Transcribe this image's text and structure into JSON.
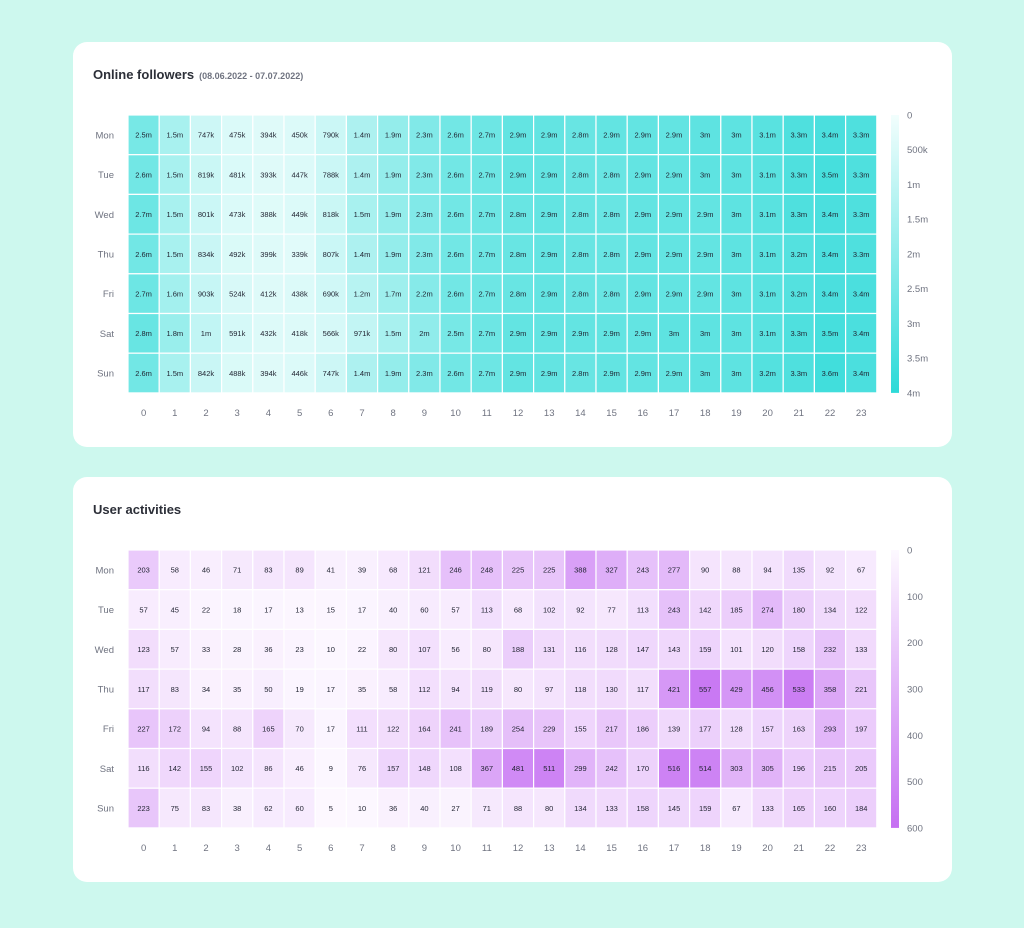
{
  "chart_data": [
    {
      "type": "heatmap",
      "title": "Online followers",
      "subtitle": "(08.06.2022 - 07.07.2022)",
      "rows": [
        "Mon",
        "Tue",
        "Wed",
        "Thu",
        "Fri",
        "Sat",
        "Sun"
      ],
      "columns": [
        "0",
        "1",
        "2",
        "3",
        "4",
        "5",
        "6",
        "7",
        "8",
        "9",
        "10",
        "11",
        "12",
        "13",
        "14",
        "15",
        "16",
        "17",
        "18",
        "19",
        "20",
        "21",
        "22",
        "23"
      ],
      "cell_labels": [
        [
          "2.5m",
          "1.5m",
          "747k",
          "475k",
          "394k",
          "450k",
          "790k",
          "1.4m",
          "1.9m",
          "2.3m",
          "2.6m",
          "2.7m",
          "2.9m",
          "2.9m",
          "2.8m",
          "2.9m",
          "2.9m",
          "2.9m",
          "3m",
          "3m",
          "3.1m",
          "3.3m",
          "3.4m",
          "3.3m"
        ],
        [
          "2.6m",
          "1.5m",
          "819k",
          "481k",
          "393k",
          "447k",
          "788k",
          "1.4m",
          "1.9m",
          "2.3m",
          "2.6m",
          "2.7m",
          "2.9m",
          "2.9m",
          "2.8m",
          "2.8m",
          "2.9m",
          "2.9m",
          "3m",
          "3m",
          "3.1m",
          "3.3m",
          "3.5m",
          "3.3m"
        ],
        [
          "2.7m",
          "1.5m",
          "801k",
          "473k",
          "388k",
          "449k",
          "818k",
          "1.5m",
          "1.9m",
          "2.3m",
          "2.6m",
          "2.7m",
          "2.8m",
          "2.9m",
          "2.8m",
          "2.8m",
          "2.9m",
          "2.9m",
          "2.9m",
          "3m",
          "3.1m",
          "3.3m",
          "3.4m",
          "3.3m"
        ],
        [
          "2.6m",
          "1.5m",
          "834k",
          "492k",
          "399k",
          "339k",
          "807k",
          "1.4m",
          "1.9m",
          "2.3m",
          "2.6m",
          "2.7m",
          "2.8m",
          "2.9m",
          "2.8m",
          "2.8m",
          "2.9m",
          "2.9m",
          "2.9m",
          "3m",
          "3.1m",
          "3.2m",
          "3.4m",
          "3.3m"
        ],
        [
          "2.7m",
          "1.6m",
          "903k",
          "524k",
          "412k",
          "438k",
          "690k",
          "1.2m",
          "1.7m",
          "2.2m",
          "2.6m",
          "2.7m",
          "2.8m",
          "2.9m",
          "2.8m",
          "2.8m",
          "2.9m",
          "2.9m",
          "2.9m",
          "3m",
          "3.1m",
          "3.2m",
          "3.4m",
          "3.4m"
        ],
        [
          "2.8m",
          "1.8m",
          "1m",
          "591k",
          "432k",
          "418k",
          "566k",
          "971k",
          "1.5m",
          "2m",
          "2.5m",
          "2.7m",
          "2.9m",
          "2.9m",
          "2.9m",
          "2.9m",
          "2.9m",
          "3m",
          "3m",
          "3m",
          "3.1m",
          "3.3m",
          "3.5m",
          "3.4m"
        ],
        [
          "2.6m",
          "1.5m",
          "842k",
          "488k",
          "394k",
          "446k",
          "747k",
          "1.4m",
          "1.9m",
          "2.3m",
          "2.6m",
          "2.7m",
          "2.9m",
          "2.9m",
          "2.8m",
          "2.9m",
          "2.9m",
          "2.9m",
          "3m",
          "3m",
          "3.2m",
          "3.3m",
          "3.6m",
          "3.4m"
        ]
      ],
      "values": [
        [
          2500000,
          1500000,
          747000,
          475000,
          394000,
          450000,
          790000,
          1400000,
          1900000,
          2300000,
          2600000,
          2700000,
          2900000,
          2900000,
          2800000,
          2900000,
          2900000,
          2900000,
          3000000,
          3000000,
          3100000,
          3300000,
          3400000,
          3300000
        ],
        [
          2600000,
          1500000,
          819000,
          481000,
          393000,
          447000,
          788000,
          1400000,
          1900000,
          2300000,
          2600000,
          2700000,
          2900000,
          2900000,
          2800000,
          2800000,
          2900000,
          2900000,
          3000000,
          3000000,
          3100000,
          3300000,
          3500000,
          3300000
        ],
        [
          2700000,
          1500000,
          801000,
          473000,
          388000,
          449000,
          818000,
          1500000,
          1900000,
          2300000,
          2600000,
          2700000,
          2800000,
          2900000,
          2800000,
          2800000,
          2900000,
          2900000,
          2900000,
          3000000,
          3100000,
          3300000,
          3400000,
          3300000
        ],
        [
          2600000,
          1500000,
          834000,
          492000,
          399000,
          339000,
          807000,
          1400000,
          1900000,
          2300000,
          2600000,
          2700000,
          2800000,
          2900000,
          2800000,
          2800000,
          2900000,
          2900000,
          2900000,
          3000000,
          3100000,
          3200000,
          3400000,
          3300000
        ],
        [
          2700000,
          1600000,
          903000,
          524000,
          412000,
          438000,
          690000,
          1200000,
          1700000,
          2200000,
          2600000,
          2700000,
          2800000,
          2900000,
          2800000,
          2800000,
          2900000,
          2900000,
          2900000,
          3000000,
          3100000,
          3200000,
          3400000,
          3400000
        ],
        [
          2800000,
          1800000,
          1000000,
          591000,
          432000,
          418000,
          566000,
          971000,
          1500000,
          2000000,
          2500000,
          2700000,
          2900000,
          2900000,
          2900000,
          2900000,
          2900000,
          3000000,
          3000000,
          3000000,
          3100000,
          3300000,
          3500000,
          3400000
        ],
        [
          2600000,
          1500000,
          842000,
          488000,
          394000,
          446000,
          747000,
          1400000,
          1900000,
          2300000,
          2600000,
          2700000,
          2900000,
          2900000,
          2800000,
          2900000,
          2900000,
          2900000,
          3000000,
          3000000,
          3200000,
          3300000,
          3600000,
          3400000
        ]
      ],
      "scale": {
        "min": 0,
        "max": 4000000,
        "ticks": [
          "0",
          "500k",
          "1m",
          "1.5m",
          "2m",
          "2.5m",
          "3m",
          "3.5m",
          "4m"
        ],
        "color_low": "#f2fefd",
        "color_high": "#2ddad8"
      },
      "legend_placement": "right"
    },
    {
      "type": "heatmap",
      "title": "User activities",
      "rows": [
        "Mon",
        "Tue",
        "Wed",
        "Thu",
        "Fri",
        "Sat",
        "Sun"
      ],
      "columns": [
        "0",
        "1",
        "2",
        "3",
        "4",
        "5",
        "6",
        "7",
        "8",
        "9",
        "10",
        "11",
        "12",
        "13",
        "14",
        "15",
        "16",
        "17",
        "18",
        "19",
        "20",
        "21",
        "22",
        "23"
      ],
      "values": [
        [
          203,
          58,
          46,
          71,
          83,
          89,
          41,
          39,
          68,
          121,
          246,
          248,
          225,
          225,
          388,
          327,
          243,
          277,
          90,
          88,
          94,
          135,
          92,
          67
        ],
        [
          57,
          45,
          22,
          18,
          17,
          13,
          15,
          17,
          40,
          60,
          57,
          113,
          68,
          102,
          92,
          77,
          113,
          243,
          142,
          185,
          274,
          180,
          134,
          122
        ],
        [
          123,
          57,
          33,
          28,
          36,
          23,
          10,
          22,
          80,
          107,
          56,
          80,
          188,
          131,
          116,
          128,
          147,
          143,
          159,
          101,
          120,
          158,
          232,
          133
        ],
        [
          117,
          83,
          34,
          35,
          50,
          19,
          17,
          35,
          58,
          112,
          94,
          119,
          80,
          97,
          118,
          130,
          117,
          421,
          557,
          429,
          456,
          533,
          358,
          221
        ],
        [
          227,
          172,
          94,
          88,
          165,
          70,
          17,
          111,
          122,
          164,
          241,
          189,
          254,
          229,
          155,
          217,
          186,
          139,
          177,
          128,
          157,
          163,
          293,
          197
        ],
        [
          116,
          142,
          155,
          102,
          86,
          46,
          9,
          76,
          157,
          148,
          108,
          367,
          481,
          511,
          299,
          242,
          170,
          516,
          514,
          303,
          305,
          196,
          215,
          205
        ],
        [
          223,
          75,
          83,
          38,
          62,
          60,
          5,
          10,
          36,
          40,
          27,
          71,
          88,
          80,
          134,
          133,
          158,
          145,
          159,
          67,
          133,
          165,
          160,
          184
        ]
      ],
      "scale": {
        "min": 0,
        "max": 600,
        "ticks": [
          "0",
          "100",
          "200",
          "300",
          "400",
          "500",
          "600"
        ],
        "color_low": "#fdf9ff",
        "color_high": "#c56ff2"
      },
      "legend_placement": "right"
    }
  ]
}
